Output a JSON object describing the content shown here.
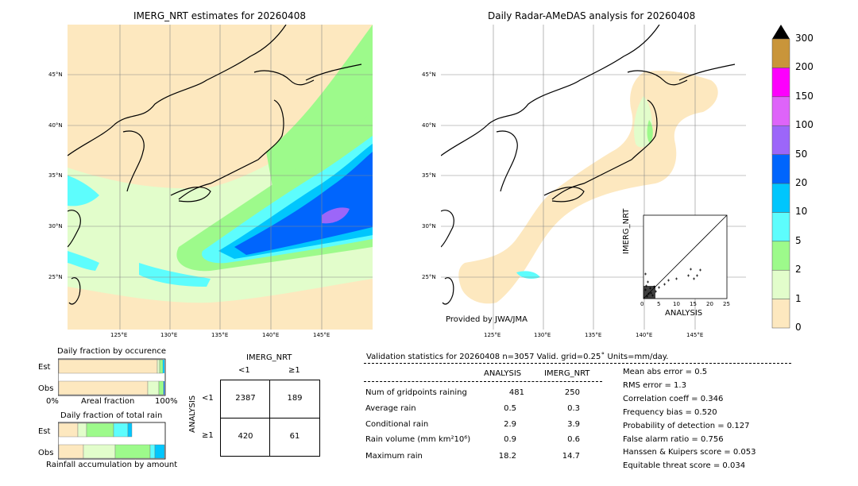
{
  "left_map": {
    "title": "IMERG_NRT estimates for 20260408",
    "lat_labels": [
      "45°N",
      "40°N",
      "35°N",
      "30°N",
      "25°N"
    ],
    "lon_labels": [
      "125°E",
      "130°E",
      "135°E",
      "140°E",
      "145°E"
    ]
  },
  "right_map": {
    "title": "Daily Radar-AMeDAS analysis for 20260408",
    "lat_labels": [
      "45°N",
      "40°N",
      "35°N",
      "30°N",
      "25°N"
    ],
    "lon_labels": [
      "125°E",
      "130°E",
      "135°E",
      "140°E",
      "145°E"
    ],
    "credit": "Provided by JWA/JMA"
  },
  "scatter": {
    "xlabel": "ANALYSIS",
    "ylabel": "IMERG_NRT",
    "ticks": [
      "0",
      "5",
      "10",
      "15",
      "20",
      "25"
    ]
  },
  "colorbar": {
    "labels": [
      "0",
      "1",
      "2",
      "5",
      "10",
      "20",
      "50",
      "100",
      "150",
      "200",
      "300"
    ],
    "colors": [
      "#fde8bf",
      "#e2fdcb",
      "#9dfa8b",
      "#5dfdfd",
      "#00c6fd",
      "#0065fd",
      "#9c66f9",
      "#de64f9",
      "#fd00fd",
      "#c9953a"
    ]
  },
  "fraction_occurrence": {
    "title": "Daily fraction by occurence",
    "row_est": "Est",
    "row_obs": "Obs",
    "axis_left": "0%",
    "axis_mid": "Areal fraction",
    "axis_right": "100%"
  },
  "fraction_rain": {
    "title": "Daily fraction of total rain",
    "row_est": "Est",
    "row_obs": "Obs",
    "axis_caption": "Rainfall accumulation by amount"
  },
  "contingency": {
    "col_title": "IMERG_NRT",
    "col_lt": "<1",
    "col_ge": "≥1",
    "row_title": "ANALYSIS",
    "row_lt": "<1",
    "row_ge": "≥1",
    "a": "2387",
    "b": "189",
    "c": "420",
    "d": "61"
  },
  "validation": {
    "header": "Validation statistics for 20260408  n=3057 Valid. grid=0.25˚ Units=mm/day.",
    "col_analysis": "ANALYSIS",
    "col_imerg": "IMERG_NRT",
    "rows": [
      {
        "label": "Num of gridpoints raining",
        "analysis": "481",
        "imerg": "250"
      },
      {
        "label": "Average rain",
        "analysis": "0.5",
        "imerg": "0.3"
      },
      {
        "label": "Conditional rain",
        "analysis": "2.9",
        "imerg": "3.9"
      },
      {
        "label": "Rain volume (mm km²10⁶)",
        "analysis": "0.9",
        "imerg": "0.6"
      },
      {
        "label": "Maximum rain",
        "analysis": "18.2",
        "imerg": "14.7"
      }
    ],
    "scores": [
      "Mean abs error =    0.5",
      "RMS error =    1.3",
      "Correlation coeff =  0.346",
      "Frequency bias =  0.520",
      "Probability of detection =  0.127",
      "False alarm ratio =  0.756",
      "Hanssen & Kuipers score =  0.053",
      "Equitable threat score =  0.034"
    ]
  }
}
